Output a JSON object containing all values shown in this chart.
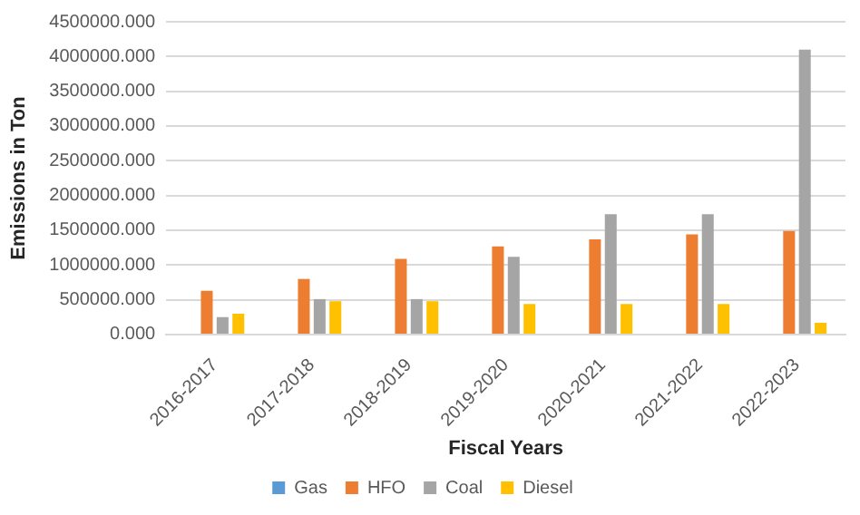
{
  "chart_data": {
    "type": "bar",
    "xlabel": "Fiscal Years",
    "ylabel": "Emissions in Ton",
    "categories": [
      "2016-2017",
      "2017-2018",
      "2018-2019",
      "2019-2020",
      "2020-2021",
      "2021-2022",
      "2022-2023"
    ],
    "series": [
      {
        "name": "Gas",
        "color": "#5b9bd5",
        "values": [
          0,
          0,
          0,
          0,
          0,
          0,
          0
        ]
      },
      {
        "name": "HFO",
        "color": "#ed7d31",
        "values": [
          630000,
          800000,
          1090000,
          1270000,
          1370000,
          1440000,
          1490000
        ]
      },
      {
        "name": "Coal",
        "color": "#a5a5a5",
        "values": [
          250000,
          510000,
          510000,
          1120000,
          1730000,
          1730000,
          4100000
        ]
      },
      {
        "name": "Diesel",
        "color": "#ffc000",
        "values": [
          300000,
          480000,
          480000,
          440000,
          440000,
          440000,
          170000
        ]
      }
    ],
    "ylim": [
      0,
      4500000
    ],
    "yticks": [
      {
        "value": 0,
        "label": "0.000"
      },
      {
        "value": 500000,
        "label": "500000.000"
      },
      {
        "value": 1000000,
        "label": "1000000.000"
      },
      {
        "value": 1500000,
        "label": "1500000.000"
      },
      {
        "value": 2000000,
        "label": "2000000.000"
      },
      {
        "value": 2500000,
        "label": "2500000.000"
      },
      {
        "value": 3000000,
        "label": "3000000.000"
      },
      {
        "value": 3500000,
        "label": "3500000.000"
      },
      {
        "value": 4000000,
        "label": "4000000.000"
      },
      {
        "value": 4500000,
        "label": "4500000.000"
      }
    ],
    "grid": "y",
    "legend": "bottom"
  }
}
